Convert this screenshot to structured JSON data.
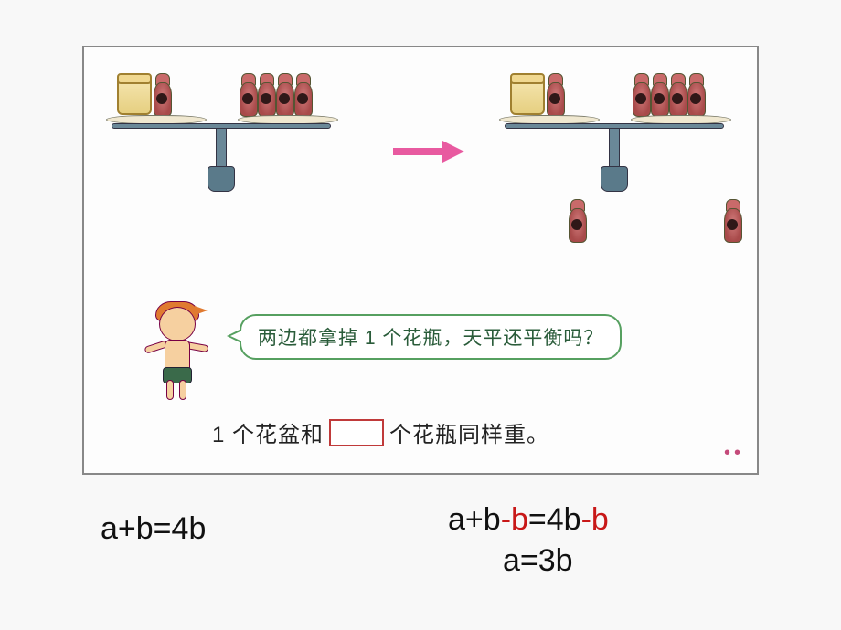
{
  "balances": {
    "left": {
      "left_tray": {
        "pots": 1,
        "vases": 1
      },
      "right_tray": {
        "vases": 4
      },
      "removed_each_side": 0
    },
    "right": {
      "left_tray": {
        "pots": 1,
        "vases": 1
      },
      "right_tray": {
        "vases": 4
      },
      "removed_each_side": 1
    }
  },
  "arrow_color": "#e85aa0",
  "speech": "两边都拿掉 1 个花瓶，天平还平衡吗？",
  "sentence": {
    "pre": "1 个花盆和",
    "post": "个花瓶同样重。"
  },
  "equations": {
    "eq1": [
      {
        "t": "a+b=4b",
        "c": "#111"
      }
    ],
    "eq2": [
      {
        "t": "a+b",
        "c": "#111"
      },
      {
        "t": "-b",
        "c": "#c81818"
      },
      {
        "t": "=4b",
        "c": "#111"
      },
      {
        "t": "-b",
        "c": "#c81818"
      }
    ],
    "eq3": [
      {
        "t": "a=3b",
        "c": "#111"
      }
    ]
  },
  "colors": {
    "panel_border": "#888",
    "scale_metal": "#6a8898",
    "tray": "#f0e8d0",
    "pot": "#e6cf80",
    "vase": "#b85a5a",
    "bubble_border": "#56a060",
    "blank_border": "#c03a3a",
    "dots": "#c44a7a"
  }
}
